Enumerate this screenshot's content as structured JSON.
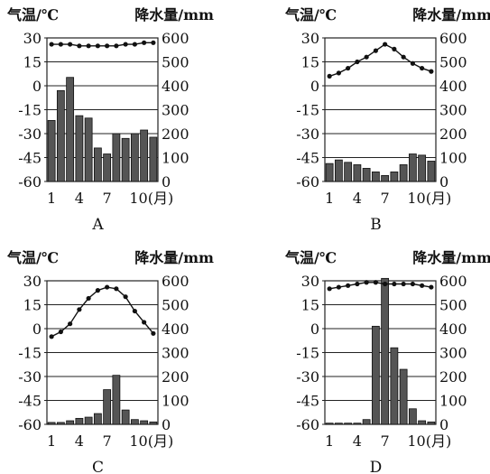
{
  "chart_data": [
    {
      "type": "bar",
      "panel_label": "A",
      "title": "",
      "ylabel_left": "气温/℃",
      "ylabel_right": "降水量/mm",
      "x_ticks": [
        "1",
        "4",
        "7",
        "10(月)"
      ],
      "y_left_ticks": [
        "30",
        "15",
        "0",
        "-15",
        "-30",
        "-45",
        "-60"
      ],
      "y_right_ticks": [
        "600",
        "500",
        "400",
        "300",
        "200",
        "100",
        "0"
      ],
      "ylim_left": [
        -60,
        30
      ],
      "ylim_right": [
        0,
        600
      ],
      "months": [
        1,
        2,
        3,
        4,
        5,
        6,
        7,
        8,
        9,
        10,
        11,
        12
      ],
      "temperature": [
        26,
        26,
        26,
        25,
        25,
        25,
        25,
        25,
        26,
        26,
        27,
        27
      ],
      "precipitation": [
        255,
        380,
        435,
        275,
        265,
        140,
        115,
        200,
        180,
        200,
        215,
        185
      ]
    },
    {
      "type": "bar",
      "panel_label": "B",
      "title": "",
      "ylabel_left": "气温/℃",
      "ylabel_right": "降水量/mm",
      "x_ticks": [
        "1",
        "4",
        "7",
        "10(月)"
      ],
      "y_left_ticks": [
        "30",
        "15",
        "0",
        "-15",
        "-30",
        "-45",
        "-60"
      ],
      "y_right_ticks": [
        "600",
        "500",
        "400",
        "300",
        "200",
        "100",
        "0"
      ],
      "ylim_left": [
        -60,
        30
      ],
      "ylim_right": [
        0,
        600
      ],
      "months": [
        1,
        2,
        3,
        4,
        5,
        6,
        7,
        8,
        9,
        10,
        11,
        12
      ],
      "temperature": [
        6,
        8,
        11,
        15,
        18,
        22,
        26,
        23,
        18,
        14,
        11,
        9
      ],
      "precipitation": [
        75,
        90,
        80,
        70,
        55,
        40,
        25,
        40,
        70,
        115,
        110,
        85
      ]
    },
    {
      "type": "bar",
      "panel_label": "C",
      "title": "",
      "ylabel_left": "气温/℃",
      "ylabel_right": "降水量/mm",
      "x_ticks": [
        "1",
        "4",
        "7",
        "10(月)"
      ],
      "y_left_ticks": [
        "30",
        "15",
        "0",
        "-15",
        "-30",
        "-45",
        "-60"
      ],
      "y_right_ticks": [
        "600",
        "500",
        "400",
        "300",
        "200",
        "100",
        "0"
      ],
      "ylim_left": [
        -60,
        30
      ],
      "ylim_right": [
        0,
        600
      ],
      "months": [
        1,
        2,
        3,
        4,
        5,
        6,
        7,
        8,
        9,
        10,
        11,
        12
      ],
      "temperature": [
        -5,
        -2,
        3,
        12,
        19,
        24,
        26,
        25,
        20,
        11,
        4,
        -3
      ],
      "precipitation": [
        8,
        8,
        15,
        25,
        30,
        45,
        145,
        205,
        60,
        20,
        15,
        10
      ]
    },
    {
      "type": "bar",
      "panel_label": "D",
      "title": "",
      "ylabel_left": "气温/℃",
      "ylabel_right": "降水量/mm",
      "x_ticks": [
        "1",
        "4",
        "7",
        "10(月)"
      ],
      "y_left_ticks": [
        "30",
        "15",
        "0",
        "-15",
        "-30",
        "-45",
        "-60"
      ],
      "y_right_ticks": [
        "600",
        "500",
        "400",
        "300",
        "200",
        "100",
        "0"
      ],
      "ylim_left": [
        -60,
        30
      ],
      "ylim_right": [
        0,
        600
      ],
      "months": [
        1,
        2,
        3,
        4,
        5,
        6,
        7,
        8,
        9,
        10,
        11,
        12
      ],
      "temperature": [
        25,
        26,
        27,
        28,
        29,
        29,
        28,
        28,
        28,
        28,
        27,
        26
      ],
      "precipitation": [
        5,
        5,
        5,
        5,
        20,
        410,
        610,
        320,
        230,
        65,
        15,
        10
      ]
    }
  ]
}
